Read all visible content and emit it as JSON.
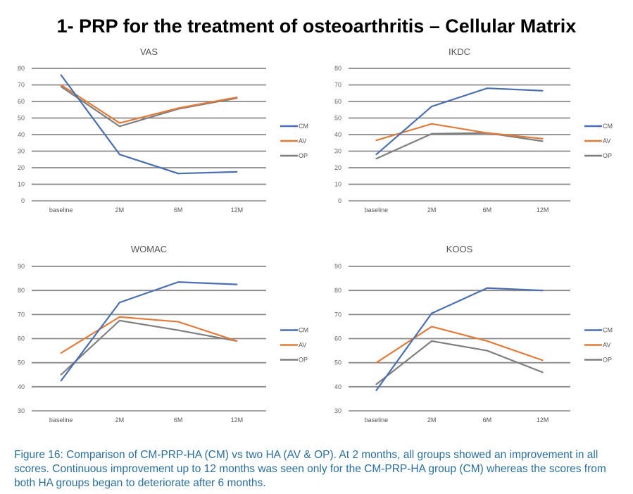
{
  "slide_title": "1- PRP for the treatment of osteoarthritis – Cellular Matrix",
  "caption": "Figure 16: Comparison of CM-PRP-HA (CM) vs two HA (AV & OP). At 2 months, all groups showed an improvement in all scores. Continuous improvement up to 12 months was seen only for the CM-PRP-HA group (CM) whereas the scores from both HA groups began to deteriorate after 6 months.",
  "colors": {
    "CM": "#4a6fb0",
    "AV": "#e07b39",
    "OP": "#7f7f7f"
  },
  "chart_data": [
    {
      "type": "line",
      "title": "VAS",
      "categories": [
        "baseline",
        "2M",
        "6M",
        "12M"
      ],
      "ylim": [
        0,
        80
      ],
      "yticks": [
        0,
        10,
        20,
        30,
        40,
        50,
        60,
        70,
        80
      ],
      "grid": true,
      "legend": "right",
      "series": [
        {
          "name": "CM",
          "values": [
            76,
            28,
            16.5,
            17.5
          ]
        },
        {
          "name": "AV",
          "values": [
            70,
            47,
            56,
            62.5
          ]
        },
        {
          "name": "OP",
          "values": [
            69,
            45,
            55.5,
            62
          ]
        }
      ]
    },
    {
      "type": "line",
      "title": "IKDC",
      "categories": [
        "baseline",
        "2M",
        "6M",
        "12M"
      ],
      "ylim": [
        0,
        80
      ],
      "yticks": [
        0,
        10,
        20,
        30,
        40,
        50,
        60,
        70,
        80
      ],
      "grid": true,
      "legend": "right",
      "series": [
        {
          "name": "CM",
          "values": [
            28,
            57,
            68,
            66.5
          ]
        },
        {
          "name": "AV",
          "values": [
            36.5,
            46.5,
            41,
            37.5
          ]
        },
        {
          "name": "OP",
          "values": [
            25.5,
            40.5,
            41,
            36
          ]
        }
      ]
    },
    {
      "type": "line",
      "title": "WOMAC",
      "categories": [
        "baseline",
        "2M",
        "6M",
        "12M"
      ],
      "ylim": [
        30,
        90
      ],
      "yticks": [
        30,
        40,
        50,
        60,
        70,
        80,
        90
      ],
      "grid": true,
      "legend": "right",
      "series": [
        {
          "name": "CM",
          "values": [
            42.5,
            75,
            83.5,
            82.5
          ]
        },
        {
          "name": "AV",
          "values": [
            54,
            69,
            67,
            59
          ]
        },
        {
          "name": "OP",
          "values": [
            45,
            67.5,
            63.5,
            59
          ]
        }
      ]
    },
    {
      "type": "line",
      "title": "KOOS",
      "categories": [
        "baseline",
        "2M",
        "6M",
        "12M"
      ],
      "ylim": [
        30,
        90
      ],
      "yticks": [
        30,
        40,
        50,
        60,
        70,
        80,
        90
      ],
      "grid": true,
      "legend": "right",
      "series": [
        {
          "name": "CM",
          "values": [
            38.5,
            70.5,
            81,
            80
          ]
        },
        {
          "name": "AV",
          "values": [
            50,
            65,
            59,
            51
          ]
        },
        {
          "name": "OP",
          "values": [
            41,
            59,
            55,
            46
          ]
        }
      ]
    }
  ]
}
